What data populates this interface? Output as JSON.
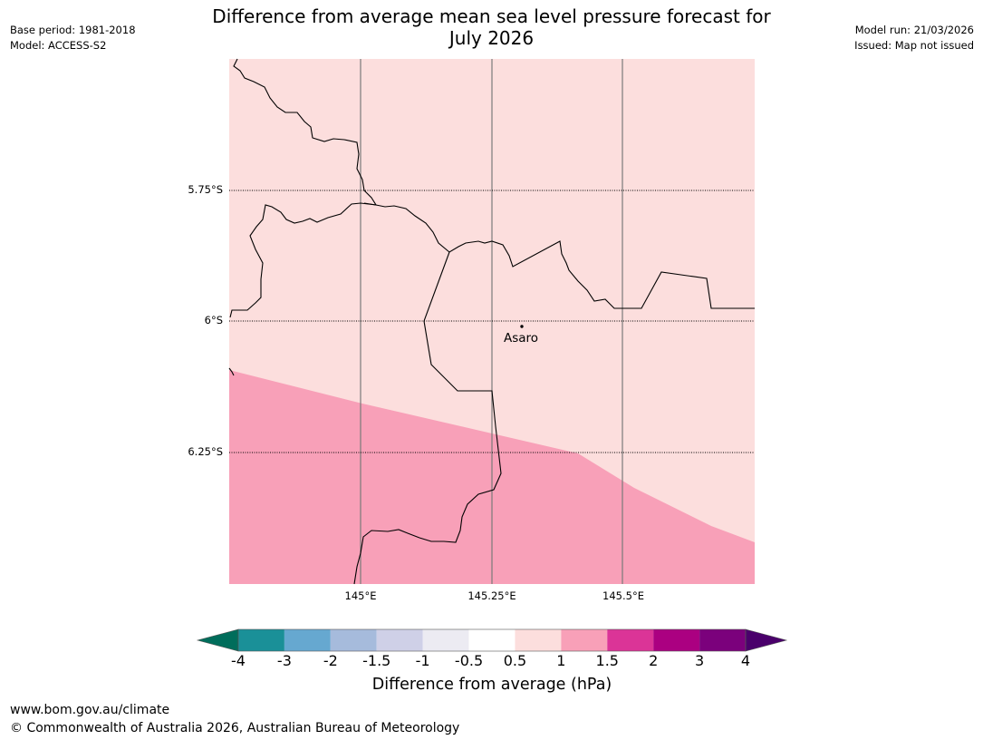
{
  "header": {
    "title_line1": "Difference from average mean sea level pressure forecast for",
    "title_line2": "July 2026",
    "base_period": "Base period: 1981-2018",
    "model": "Model: ACCESS-S2",
    "model_run": "Model run: 21/03/2026",
    "issued": "Issued: Map not issued"
  },
  "map": {
    "latitude_labels": [
      "5.75°S",
      "6°S",
      "6.25°S"
    ],
    "longitude_labels": [
      "145°E",
      "145.25°E",
      "145.5°E"
    ],
    "place_label": "Asaro",
    "fill_colors": {
      "background": "#fcdedd",
      "anomaly_1_to_1_5": "#f8a0b8"
    }
  },
  "colorbar": {
    "title": "Difference from average (hPa)",
    "ticks": [
      "-4",
      "-3",
      "-2",
      "-1.5",
      "-1",
      "-0.5",
      "0.5",
      "1",
      "1.5",
      "2",
      "3",
      "4"
    ],
    "colors": [
      "#006d5b",
      "#1a9098",
      "#66a8d0",
      "#a6bbdc",
      "#cfd0e7",
      "#ecebf2",
      "#ffffff",
      "#fcdedd",
      "#f8a0b8",
      "#db3497",
      "#ab0081",
      "#7b017c",
      "#4a006b"
    ]
  },
  "footer": {
    "url": "www.bom.gov.au/climate",
    "copyright": "© Commonwealth of Australia 2026, Australian Bureau of Meteorology"
  }
}
